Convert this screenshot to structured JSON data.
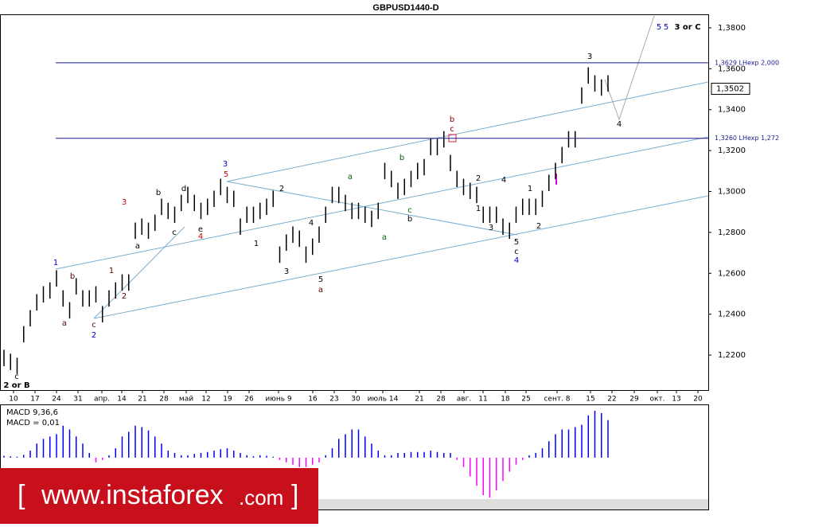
{
  "chart_data": {
    "type": "ohlc",
    "title": "GBPUSD1440-D",
    "color": "#000000",
    "high": [
      1.2226,
      1.2207,
      1.2187,
      1.2342,
      1.242,
      1.2498,
      1.2537,
      1.2556,
      1.2615,
      1.2517,
      1.2459,
      1.2576,
      1.2517,
      1.2517,
      1.2537,
      1.244,
      1.2517,
      1.2556,
      1.2595,
      1.2595,
      1.2848,
      1.2868,
      1.2848,
      1.2887,
      1.2965,
      1.2945,
      1.2926,
      1.2984,
      1.3023,
      1.2984,
      1.2945,
      1.2965,
      1.3004,
      1.3062,
      1.3023,
      1.3004,
      1.2868,
      1.2926,
      1.2926,
      1.2945,
      1.2965,
      1.3004,
      1.2731,
      1.279,
      1.2829,
      1.2809,
      1.2731,
      1.277,
      1.2829,
      1.2926,
      1.3023,
      1.3023,
      1.2984,
      1.2945,
      1.2945,
      1.2926,
      1.2906,
      1.2945,
      1.314,
      1.3101,
      1.3043,
      1.3062,
      1.3101,
      1.314,
      1.3159,
      1.3257,
      1.3257,
      1.3295,
      1.3179,
      1.3101,
      1.3062,
      1.3043,
      1.3023,
      1.2926,
      1.2926,
      1.2926,
      1.2868,
      1.2848,
      1.2926,
      1.2965,
      1.2965,
      1.2965,
      1.3004,
      1.3082,
      1.314,
      1.3218,
      1.3295,
      1.3295,
      1.3509,
      1.3607,
      1.3568,
      1.3548,
      1.3568
    ],
    "low": [
      1.2146,
      1.2127,
      1.2107,
      1.2262,
      1.234,
      1.2418,
      1.2457,
      1.2476,
      1.2535,
      1.2437,
      1.2379,
      1.2496,
      1.2437,
      1.2437,
      1.2457,
      1.236,
      1.2437,
      1.2476,
      1.2515,
      1.2515,
      1.2768,
      1.2788,
      1.2768,
      1.2807,
      1.2885,
      1.2865,
      1.2846,
      1.2904,
      1.2943,
      1.2904,
      1.2865,
      1.2885,
      1.2924,
      1.2982,
      1.2943,
      1.2924,
      1.2788,
      1.2846,
      1.2846,
      1.2865,
      1.2885,
      1.2924,
      1.2651,
      1.271,
      1.2749,
      1.2729,
      1.2651,
      1.269,
      1.2749,
      1.2846,
      1.2943,
      1.2943,
      1.2904,
      1.2865,
      1.2865,
      1.2846,
      1.2826,
      1.2865,
      1.306,
      1.3021,
      1.2963,
      1.2982,
      1.3021,
      1.306,
      1.3079,
      1.3177,
      1.3177,
      1.3215,
      1.3099,
      1.3021,
      1.2982,
      1.2963,
      1.2943,
      1.2846,
      1.2846,
      1.2846,
      1.2788,
      1.2768,
      1.2846,
      1.2885,
      1.2885,
      1.2885,
      1.2924,
      1.3002,
      1.306,
      1.3138,
      1.3215,
      1.3215,
      1.3429,
      1.3527,
      1.3488,
      1.3468,
      1.3488
    ],
    "ylim": [
      1.2029,
      1.3866
    ],
    "yticks": [
      {
        "value": 1.22,
        "label": "1,2200"
      },
      {
        "value": 1.24,
        "label": "1,2400"
      },
      {
        "value": 1.26,
        "label": "1,2600"
      },
      {
        "value": 1.28,
        "label": "1,2800"
      },
      {
        "value": 1.3,
        "label": "1,3000"
      },
      {
        "value": 1.32,
        "label": "1,3200"
      },
      {
        "value": 1.34,
        "label": "1,3400"
      },
      {
        "value": 1.36,
        "label": "1,3600"
      },
      {
        "value": 1.38,
        "label": "1,3800"
      }
    ],
    "last_price": {
      "value": 1.3502,
      "label": "1,3502"
    },
    "levels": [
      {
        "value": 1.3629,
        "label": "1,3629 LHexp 2,000",
        "color": "#1a1a8c"
      },
      {
        "value": 1.326,
        "label": "1,3260 LHexp 1,272",
        "color": "#1a1a8c"
      }
    ],
    "x_labels": [
      "10",
      "17",
      "24",
      "31",
      "апр.",
      "14",
      "21",
      "28",
      "май",
      "12",
      "19",
      "26",
      "июнь 9",
      "16",
      "23",
      "30",
      "июль 14",
      "21",
      "28",
      "авг.",
      "11",
      "18",
      "25",
      "сент. 8",
      "15",
      "22",
      "29",
      "окт.",
      "13",
      "20"
    ],
    "annotations": [
      {
        "text": "c",
        "color": "#000000"
      },
      {
        "text": "2 or B",
        "color": "#000000"
      },
      {
        "text": "1",
        "color": "#0000cc"
      },
      {
        "text": "b",
        "color": "#5a0000"
      },
      {
        "text": "a",
        "color": "#5a0000"
      },
      {
        "text": "c",
        "color": "#5a0000"
      },
      {
        "text": "2",
        "color": "#0000cc"
      },
      {
        "text": "1",
        "color": "#5a0000"
      },
      {
        "text": "2",
        "color": "#5a0000"
      },
      {
        "text": "3",
        "color": "#cc0000"
      },
      {
        "text": "a",
        "color": "#000000"
      },
      {
        "text": "b",
        "color": "#000000"
      },
      {
        "text": "c",
        "color": "#000000"
      },
      {
        "text": "d",
        "color": "#000000"
      },
      {
        "text": "e",
        "color": "#000000"
      },
      {
        "text": "4",
        "color": "#cc0000"
      },
      {
        "text": "3",
        "color": "#0000cc"
      },
      {
        "text": "5",
        "color": "#cc0000"
      },
      {
        "text": "2",
        "color": "#000000"
      },
      {
        "text": "1",
        "color": "#000000"
      },
      {
        "text": "3",
        "color": "#000000"
      },
      {
        "text": "4",
        "color": "#000000"
      },
      {
        "text": "5",
        "color": "#000000"
      },
      {
        "text": "a",
        "color": "#5a0000"
      },
      {
        "text": "a",
        "color": "#006600"
      },
      {
        "text": "a",
        "color": "#006600"
      },
      {
        "text": "b",
        "color": "#006600"
      },
      {
        "text": "c",
        "color": "#006600"
      },
      {
        "text": "b",
        "color": "#000000"
      },
      {
        "text": "b",
        "color": "#800000"
      },
      {
        "text": "c",
        "color": "#800000"
      },
      {
        "text": "2",
        "color": "#000000"
      },
      {
        "text": "1",
        "color": "#000000"
      },
      {
        "text": "4",
        "color": "#000000"
      },
      {
        "text": "3",
        "color": "#000000"
      },
      {
        "text": "5",
        "color": "#000000"
      },
      {
        "text": "c",
        "color": "#000000"
      },
      {
        "text": "4",
        "color": "#0000cc"
      },
      {
        "text": "1",
        "color": "#000000"
      },
      {
        "text": "2",
        "color": "#000000"
      },
      {
        "text": "3",
        "color": "#000000"
      },
      {
        "text": "4",
        "color": "#000000"
      },
      {
        "text": "5",
        "color": "#0000cc"
      },
      {
        "text": "5",
        "color": "#0000cc"
      },
      {
        "text": "3 or C",
        "color": "#000000"
      }
    ],
    "macd": {
      "title": "MACD 9,36,6",
      "value_text": "MACD = 0,01",
      "pos_color": "#0000ff",
      "neg_color": "#ff00ff",
      "ylim": [
        -0.0085,
        0.011
      ],
      "values": [
        0.0004,
        0.0003,
        0.0002,
        0.0006,
        0.0015,
        0.003,
        0.004,
        0.0045,
        0.005,
        0.0068,
        0.006,
        0.0045,
        0.003,
        0.001,
        -0.001,
        -0.0005,
        0.0005,
        0.002,
        0.0045,
        0.0055,
        0.0068,
        0.0065,
        0.0058,
        0.0045,
        0.003,
        0.0015,
        0.001,
        0.0005,
        0.0005,
        0.0008,
        0.001,
        0.0012,
        0.0015,
        0.0018,
        0.002,
        0.0015,
        0.001,
        0.0005,
        0.0003,
        0.0005,
        0.0004,
        0.0002,
        -0.0005,
        -0.001,
        -0.0015,
        -0.002,
        -0.002,
        -0.0015,
        -0.001,
        0.0005,
        0.002,
        0.004,
        0.005,
        0.006,
        0.006,
        0.0045,
        0.003,
        0.0015,
        0.0005,
        0.0005,
        0.001,
        0.001,
        0.0012,
        0.0012,
        0.0012,
        0.0015,
        0.0012,
        0.001,
        0.001,
        -0.0005,
        -0.002,
        -0.004,
        -0.006,
        -0.008,
        -0.0085,
        -0.007,
        -0.005,
        -0.003,
        -0.0015,
        -0.0005,
        0.0005,
        0.001,
        0.002,
        0.0035,
        0.005,
        0.006,
        0.006,
        0.0065,
        0.007,
        0.009,
        0.01,
        0.0095,
        0.008
      ]
    }
  },
  "watermark": {
    "left": "[",
    "site": "www.instaforex",
    "domain": ".com",
    "right": "]"
  }
}
